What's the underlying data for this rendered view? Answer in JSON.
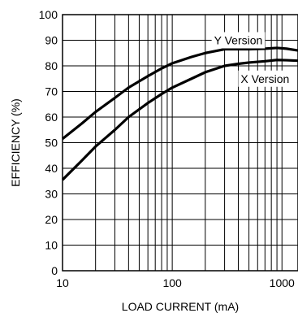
{
  "chart_data": {
    "type": "line",
    "xscale": "log",
    "xlim": [
      10,
      1400
    ],
    "ylim": [
      0,
      100
    ],
    "xlabel": "LOAD CURRENT (mA)",
    "ylabel": "EFFICIENCY (%)",
    "grid": true,
    "x_ticks": [
      {
        "value": 10,
        "label": "10"
      },
      {
        "value": 100,
        "label": "100"
      },
      {
        "value": 1000,
        "label": "1000"
      }
    ],
    "y_ticks": [
      {
        "value": 0,
        "label": "0"
      },
      {
        "value": 10,
        "label": "10"
      },
      {
        "value": 20,
        "label": "20"
      },
      {
        "value": 30,
        "label": "30"
      },
      {
        "value": 40,
        "label": "40"
      },
      {
        "value": 50,
        "label": "50"
      },
      {
        "value": 60,
        "label": "60"
      },
      {
        "value": 70,
        "label": "70"
      },
      {
        "value": 80,
        "label": "80"
      },
      {
        "value": 90,
        "label": "90"
      },
      {
        "value": 100,
        "label": "100"
      }
    ],
    "series": [
      {
        "name": "Y Version",
        "label_anchor": {
          "x": 400,
          "y": 90
        },
        "points": [
          [
            10,
            51.5
          ],
          [
            15,
            57.5
          ],
          [
            20,
            62
          ],
          [
            30,
            67.5
          ],
          [
            40,
            71.5
          ],
          [
            60,
            76
          ],
          [
            80,
            79
          ],
          [
            100,
            81
          ],
          [
            150,
            83.5
          ],
          [
            200,
            85
          ],
          [
            300,
            86.5
          ],
          [
            400,
            86.5
          ],
          [
            500,
            86.5
          ],
          [
            700,
            86.7
          ],
          [
            900,
            87
          ],
          [
            1100,
            86.7
          ],
          [
            1400,
            86
          ]
        ]
      },
      {
        "name": "X Version",
        "label_anchor": {
          "x": 700,
          "y": 75
        },
        "points": [
          [
            10,
            35.5
          ],
          [
            15,
            43
          ],
          [
            20,
            48.5
          ],
          [
            30,
            55
          ],
          [
            40,
            60
          ],
          [
            60,
            65.5
          ],
          [
            80,
            69
          ],
          [
            100,
            71.5
          ],
          [
            150,
            75
          ],
          [
            200,
            77.5
          ],
          [
            300,
            80
          ],
          [
            400,
            80.8
          ],
          [
            500,
            81.3
          ],
          [
            700,
            81.8
          ],
          [
            900,
            82.3
          ],
          [
            1100,
            82.2
          ],
          [
            1400,
            82
          ]
        ]
      }
    ]
  }
}
